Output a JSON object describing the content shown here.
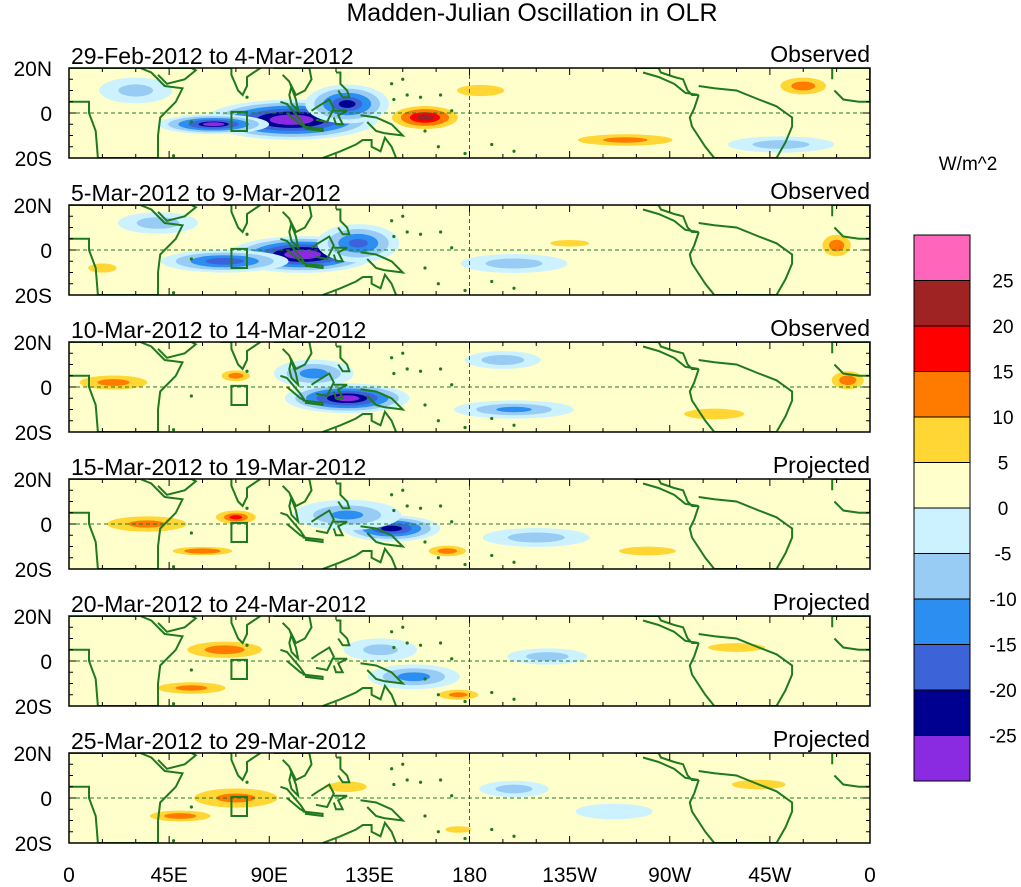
{
  "title": "Madden-Julian Oscillation in OLR",
  "units_label": "W/m^2",
  "y_ticks": [
    "20N",
    "0",
    "20S"
  ],
  "x_ticks": [
    "0",
    "45E",
    "90E",
    "135E",
    "180",
    "135W",
    "90W",
    "45W",
    "0"
  ],
  "panels": [
    {
      "date_range": "29-Feb-2012 to 4-Mar-2012",
      "kind": "Observed",
      "anomalies": [
        {
          "lon": 100,
          "lat": -3,
          "value": -32,
          "width_deg": 52,
          "height_deg": 12
        },
        {
          "lon": 65,
          "lat": -5,
          "value": -26,
          "width_deg": 34,
          "height_deg": 6
        },
        {
          "lon": 125,
          "lat": 4,
          "value": -22,
          "width_deg": 26,
          "height_deg": 12
        },
        {
          "lon": 30,
          "lat": 10,
          "value": -8,
          "width_deg": 26,
          "height_deg": 9
        },
        {
          "lon": 160,
          "lat": -2,
          "value": 22,
          "width_deg": 26,
          "height_deg": 9
        },
        {
          "lon": 185,
          "lat": 10,
          "value": 5,
          "width_deg": 30,
          "height_deg": 7
        },
        {
          "lon": 250,
          "lat": -12,
          "value": 12,
          "width_deg": 50,
          "height_deg": 6
        },
        {
          "lon": 330,
          "lat": 12,
          "value": 14,
          "width_deg": 22,
          "height_deg": 8
        },
        {
          "lon": 320,
          "lat": -14,
          "value": -6,
          "width_deg": 40,
          "height_deg": 6
        }
      ]
    },
    {
      "date_range": "5-Mar-2012 to 9-Mar-2012",
      "kind": "Observed",
      "anomalies": [
        {
          "lon": 105,
          "lat": -2,
          "value": -32,
          "width_deg": 44,
          "height_deg": 11
        },
        {
          "lon": 70,
          "lat": -5,
          "value": -20,
          "width_deg": 40,
          "height_deg": 7
        },
        {
          "lon": 130,
          "lat": 3,
          "value": -18,
          "width_deg": 26,
          "height_deg": 12
        },
        {
          "lon": 40,
          "lat": 12,
          "value": -6,
          "width_deg": 30,
          "height_deg": 8
        },
        {
          "lon": 200,
          "lat": -6,
          "value": -6,
          "width_deg": 40,
          "height_deg": 7
        },
        {
          "lon": 225,
          "lat": 3,
          "value": 7,
          "width_deg": 30,
          "height_deg": 5
        },
        {
          "lon": 345,
          "lat": 2,
          "value": 11,
          "width_deg": 16,
          "height_deg": 12
        },
        {
          "lon": 15,
          "lat": -8,
          "value": 7,
          "width_deg": 22,
          "height_deg": 7
        }
      ]
    },
    {
      "date_range": "10-Mar-2012 to 14-Mar-2012",
      "kind": "Observed",
      "anomalies": [
        {
          "lon": 125,
          "lat": -5,
          "value": -28,
          "width_deg": 38,
          "height_deg": 9
        },
        {
          "lon": 110,
          "lat": 6,
          "value": -14,
          "width_deg": 26,
          "height_deg": 9
        },
        {
          "lon": 195,
          "lat": 12,
          "value": -10,
          "width_deg": 26,
          "height_deg": 6
        },
        {
          "lon": 200,
          "lat": -10,
          "value": -12,
          "width_deg": 40,
          "height_deg": 6
        },
        {
          "lon": 20,
          "lat": 2,
          "value": 13,
          "width_deg": 34,
          "height_deg": 7
        },
        {
          "lon": 75,
          "lat": 5,
          "value": 11,
          "width_deg": 16,
          "height_deg": 6
        },
        {
          "lon": 350,
          "lat": 3,
          "value": 11,
          "width_deg": 18,
          "height_deg": 10
        },
        {
          "lon": 290,
          "lat": -12,
          "value": 9,
          "width_deg": 40,
          "height_deg": 7
        }
      ]
    },
    {
      "date_range": "15-Mar-2012 to 19-Mar-2012",
      "kind": "Projected",
      "anomalies": [
        {
          "lon": 145,
          "lat": -2,
          "value": -24,
          "width_deg": 30,
          "height_deg": 8
        },
        {
          "lon": 125,
          "lat": 4,
          "value": -12,
          "width_deg": 36,
          "height_deg": 10
        },
        {
          "lon": 210,
          "lat": -6,
          "value": -6,
          "width_deg": 40,
          "height_deg": 7
        },
        {
          "lon": 35,
          "lat": 0,
          "value": 12,
          "width_deg": 42,
          "height_deg": 8
        },
        {
          "lon": 75,
          "lat": 3,
          "value": 16,
          "width_deg": 18,
          "height_deg": 6
        },
        {
          "lon": 60,
          "lat": -12,
          "value": 10,
          "width_deg": 36,
          "height_deg": 5
        },
        {
          "lon": 170,
          "lat": -12,
          "value": 14,
          "width_deg": 18,
          "height_deg": 5
        },
        {
          "lon": 260,
          "lat": -12,
          "value": 6,
          "width_deg": 40,
          "height_deg": 6
        }
      ]
    },
    {
      "date_range": "20-Mar-2012 to 24-Mar-2012",
      "kind": "Projected",
      "anomalies": [
        {
          "lon": 155,
          "lat": -7,
          "value": -14,
          "width_deg": 30,
          "height_deg": 8
        },
        {
          "lon": 140,
          "lat": 5,
          "value": -8,
          "width_deg": 26,
          "height_deg": 8
        },
        {
          "lon": 70,
          "lat": 5,
          "value": 11,
          "width_deg": 42,
          "height_deg": 9
        },
        {
          "lon": 55,
          "lat": -12,
          "value": 12,
          "width_deg": 36,
          "height_deg": 6
        },
        {
          "lon": 175,
          "lat": -15,
          "value": 13,
          "width_deg": 20,
          "height_deg": 5
        },
        {
          "lon": 215,
          "lat": 2,
          "value": -6,
          "width_deg": 30,
          "height_deg": 6
        },
        {
          "lon": 300,
          "lat": 6,
          "value": 6,
          "width_deg": 40,
          "height_deg": 6
        }
      ]
    },
    {
      "date_range": "25-Mar-2012 to 29-Mar-2012",
      "kind": "Projected",
      "anomalies": [
        {
          "lon": 75,
          "lat": 0,
          "value": 12,
          "width_deg": 44,
          "height_deg": 10
        },
        {
          "lon": 50,
          "lat": -8,
          "value": 11,
          "width_deg": 34,
          "height_deg": 6
        },
        {
          "lon": 125,
          "lat": 5,
          "value": 9,
          "width_deg": 26,
          "height_deg": 7
        },
        {
          "lon": 175,
          "lat": -14,
          "value": 7,
          "width_deg": 20,
          "height_deg": 5
        },
        {
          "lon": 200,
          "lat": 4,
          "value": -6,
          "width_deg": 26,
          "height_deg": 6
        },
        {
          "lon": 245,
          "lat": -6,
          "value": -5,
          "width_deg": 30,
          "height_deg": 6
        },
        {
          "lon": 310,
          "lat": 6,
          "value": 5,
          "width_deg": 34,
          "height_deg": 6
        }
      ]
    }
  ],
  "colorbar": {
    "labels": [
      "25",
      "20",
      "15",
      "10",
      "5",
      "0",
      "-5",
      "-10",
      "-15",
      "-20",
      "-25"
    ],
    "colors": [
      "#ff66bb",
      "#a02323",
      "#ff0000",
      "#ff7b00",
      "#ffd633",
      "#ffffcc",
      "#ccf2ff",
      "#99ccf5",
      "#2b8ef0",
      "#3d63d9",
      "#000090",
      "#8a2be2"
    ]
  },
  "colors": {
    "coast": "#1f7a1f",
    "equator_line": "#1f7a1f",
    "frame": "#000000"
  }
}
